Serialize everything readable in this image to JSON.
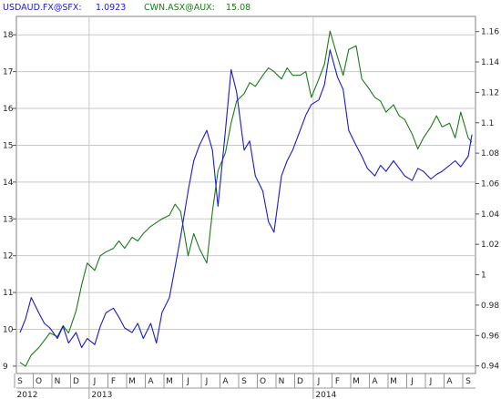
{
  "legend": {
    "usd_label": "USDAUD.FX@SFX:",
    "usd_value": "1.0923",
    "cwn_label": "CWN.ASX@AUX:",
    "cwn_value": "15.08"
  },
  "colors": {
    "usd_series": "#1a1acc",
    "cwn_series": "#1a7a1a",
    "grid": "#c8c8c8",
    "plot_bg": "#ffffff",
    "frame": "#808080"
  },
  "chart_data": {
    "type": "line",
    "title": "",
    "grid": true,
    "legend_placement": "top-left",
    "x_months": [
      "S",
      "O",
      "N",
      "D",
      "J",
      "F",
      "M",
      "A",
      "M",
      "J",
      "J",
      "A",
      "S",
      "O",
      "N",
      "D",
      "J",
      "F",
      "M",
      "A",
      "M",
      "J",
      "J",
      "A",
      "S"
    ],
    "x_years": [
      "2012",
      "2013",
      "2014"
    ],
    "left_axis": {
      "series": "CWN.ASX@AUX",
      "range": [
        8.8,
        18.5
      ],
      "ticks": [
        "9",
        "10",
        "11",
        "12",
        "13",
        "14",
        "15",
        "16",
        "17",
        "18"
      ]
    },
    "right_axis": {
      "series": "USDAUD.FX@SFX",
      "range": [
        0.935,
        1.17
      ],
      "ticks": [
        "0.94",
        "0.96",
        "0.98",
        "1",
        "1.02",
        "1.04",
        "1.06",
        "1.08",
        "1.1",
        "1.12",
        "1.14",
        "1.16"
      ]
    },
    "series": [
      {
        "name": "CWN.ASX@AUX",
        "axis": "left",
        "points": [
          [
            0,
            9.1
          ],
          [
            0.3,
            9.0
          ],
          [
            0.6,
            9.3
          ],
          [
            1.0,
            9.5
          ],
          [
            1.3,
            9.7
          ],
          [
            1.6,
            9.9
          ],
          [
            2.0,
            9.8
          ],
          [
            2.3,
            10.1
          ],
          [
            2.6,
            9.9
          ],
          [
            3.0,
            10.5
          ],
          [
            3.3,
            11.2
          ],
          [
            3.6,
            11.8
          ],
          [
            4.0,
            11.6
          ],
          [
            4.3,
            12.0
          ],
          [
            4.6,
            12.1
          ],
          [
            5.0,
            12.2
          ],
          [
            5.3,
            12.4
          ],
          [
            5.6,
            12.2
          ],
          [
            6.0,
            12.5
          ],
          [
            6.3,
            12.4
          ],
          [
            6.6,
            12.6
          ],
          [
            7.0,
            12.8
          ],
          [
            7.3,
            12.9
          ],
          [
            7.6,
            13.0
          ],
          [
            8.0,
            13.1
          ],
          [
            8.3,
            13.4
          ],
          [
            8.6,
            13.2
          ],
          [
            9.0,
            12.0
          ],
          [
            9.3,
            12.6
          ],
          [
            9.6,
            12.2
          ],
          [
            10.0,
            11.8
          ],
          [
            10.3,
            13.2
          ],
          [
            10.6,
            14.3
          ],
          [
            11.0,
            14.8
          ],
          [
            11.3,
            15.6
          ],
          [
            11.6,
            16.2
          ],
          [
            12.0,
            16.4
          ],
          [
            12.3,
            16.7
          ],
          [
            12.6,
            16.6
          ],
          [
            13.0,
            16.9
          ],
          [
            13.3,
            17.1
          ],
          [
            13.6,
            17.0
          ],
          [
            14.0,
            16.8
          ],
          [
            14.3,
            17.1
          ],
          [
            14.6,
            16.9
          ],
          [
            15.0,
            16.9
          ],
          [
            15.3,
            17.0
          ],
          [
            15.6,
            16.3
          ],
          [
            16.0,
            16.8
          ],
          [
            16.3,
            17.2
          ],
          [
            16.6,
            18.1
          ],
          [
            17.0,
            17.4
          ],
          [
            17.3,
            16.9
          ],
          [
            17.6,
            17.6
          ],
          [
            18.0,
            17.7
          ],
          [
            18.3,
            16.8
          ],
          [
            18.6,
            16.6
          ],
          [
            19.0,
            16.3
          ],
          [
            19.3,
            16.2
          ],
          [
            19.6,
            15.9
          ],
          [
            20.0,
            16.1
          ],
          [
            20.3,
            15.8
          ],
          [
            20.6,
            15.7
          ],
          [
            21.0,
            15.3
          ],
          [
            21.3,
            14.9
          ],
          [
            21.6,
            15.2
          ],
          [
            22.0,
            15.5
          ],
          [
            22.3,
            15.8
          ],
          [
            22.6,
            15.5
          ],
          [
            23.0,
            15.6
          ],
          [
            23.3,
            15.2
          ],
          [
            23.6,
            15.9
          ],
          [
            24.0,
            15.2
          ],
          [
            24.2,
            15.08
          ]
        ]
      },
      {
        "name": "USDAUD.FX@SFX",
        "axis": "right",
        "points": [
          [
            0,
            0.962
          ],
          [
            0.3,
            0.971
          ],
          [
            0.6,
            0.985
          ],
          [
            1.0,
            0.975
          ],
          [
            1.3,
            0.968
          ],
          [
            1.6,
            0.965
          ],
          [
            2.0,
            0.958
          ],
          [
            2.3,
            0.966
          ],
          [
            2.6,
            0.955
          ],
          [
            3.0,
            0.962
          ],
          [
            3.3,
            0.952
          ],
          [
            3.6,
            0.958
          ],
          [
            4.0,
            0.954
          ],
          [
            4.3,
            0.966
          ],
          [
            4.6,
            0.975
          ],
          [
            5.0,
            0.978
          ],
          [
            5.3,
            0.972
          ],
          [
            5.6,
            0.965
          ],
          [
            6.0,
            0.962
          ],
          [
            6.3,
            0.968
          ],
          [
            6.6,
            0.958
          ],
          [
            7.0,
            0.968
          ],
          [
            7.3,
            0.955
          ],
          [
            7.6,
            0.975
          ],
          [
            8.0,
            0.985
          ],
          [
            8.3,
            1.005
          ],
          [
            8.6,
            1.025
          ],
          [
            9.0,
            1.055
          ],
          [
            9.3,
            1.075
          ],
          [
            9.6,
            1.085
          ],
          [
            10.0,
            1.095
          ],
          [
            10.3,
            1.082
          ],
          [
            10.6,
            1.045
          ],
          [
            11.0,
            1.095
          ],
          [
            11.3,
            1.135
          ],
          [
            11.6,
            1.12
          ],
          [
            12.0,
            1.082
          ],
          [
            12.3,
            1.088
          ],
          [
            12.6,
            1.065
          ],
          [
            13.0,
            1.055
          ],
          [
            13.3,
            1.035
          ],
          [
            13.6,
            1.028
          ],
          [
            14.0,
            1.065
          ],
          [
            14.3,
            1.075
          ],
          [
            14.6,
            1.082
          ],
          [
            15.0,
            1.095
          ],
          [
            15.3,
            1.105
          ],
          [
            15.6,
            1.112
          ],
          [
            16.0,
            1.115
          ],
          [
            16.3,
            1.125
          ],
          [
            16.6,
            1.148
          ],
          [
            17.0,
            1.13
          ],
          [
            17.3,
            1.122
          ],
          [
            17.6,
            1.095
          ],
          [
            18.0,
            1.085
          ],
          [
            18.3,
            1.078
          ],
          [
            18.6,
            1.07
          ],
          [
            19.0,
            1.065
          ],
          [
            19.3,
            1.072
          ],
          [
            19.6,
            1.068
          ],
          [
            20.0,
            1.075
          ],
          [
            20.3,
            1.07
          ],
          [
            20.6,
            1.065
          ],
          [
            21.0,
            1.062
          ],
          [
            21.3,
            1.07
          ],
          [
            21.6,
            1.068
          ],
          [
            22.0,
            1.063
          ],
          [
            22.3,
            1.066
          ],
          [
            22.6,
            1.068
          ],
          [
            23.0,
            1.072
          ],
          [
            23.3,
            1.075
          ],
          [
            23.6,
            1.071
          ],
          [
            24.0,
            1.078
          ],
          [
            24.2,
            1.0923
          ]
        ]
      }
    ]
  }
}
